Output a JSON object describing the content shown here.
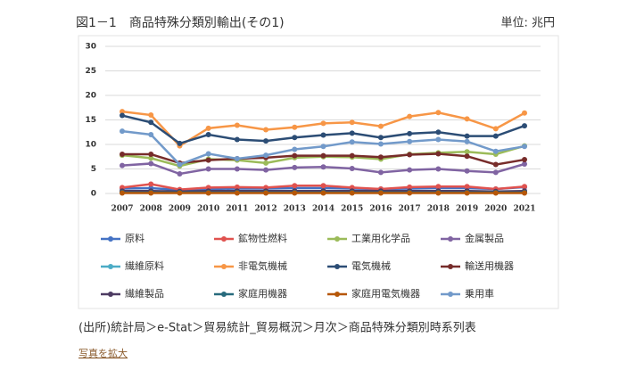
{
  "chart_data": {
    "type": "line",
    "title": "図1－1　商品特殊分類別輸出(その1)",
    "unit": "単位: 兆円",
    "x": [
      "2007",
      "2008",
      "2009",
      "2010",
      "2011",
      "2012",
      "2013",
      "2014",
      "2015",
      "2016",
      "2017",
      "2018",
      "2019",
      "2020",
      "2021"
    ],
    "ylim": [
      0,
      30
    ],
    "yticks": [
      0,
      5,
      10,
      15,
      20,
      25,
      30
    ],
    "grid": true,
    "series": [
      {
        "name": "原料",
        "color": "#4472c4",
        "values": [
          1.0,
          1.1,
          0.7,
          0.9,
          1.0,
          1.0,
          1.1,
          1.1,
          1.0,
          0.9,
          1.0,
          1.1,
          1.1,
          0.9,
          1.3
        ]
      },
      {
        "name": "鉱物性燃料",
        "color": "#e0524f",
        "values": [
          1.2,
          1.9,
          0.8,
          1.2,
          1.3,
          1.2,
          1.6,
          1.6,
          1.2,
          0.9,
          1.3,
          1.4,
          1.4,
          0.9,
          1.4
        ]
      },
      {
        "name": "工業用化学品",
        "color": "#9bbb59",
        "values": [
          7.8,
          7.2,
          5.6,
          7.0,
          6.8,
          6.2,
          7.3,
          7.5,
          7.4,
          7.0,
          8.0,
          8.3,
          8.5,
          8.0,
          9.7
        ]
      },
      {
        "name": "金属製品",
        "color": "#8064a2",
        "values": [
          5.7,
          6.1,
          4.0,
          5.0,
          5.0,
          4.8,
          5.3,
          5.4,
          5.1,
          4.3,
          4.8,
          5.0,
          4.6,
          4.3,
          6.0
        ]
      },
      {
        "name": "繊維原料",
        "color": "#4bacc6",
        "values": [
          0.3,
          0.3,
          0.2,
          0.3,
          0.3,
          0.3,
          0.3,
          0.3,
          0.3,
          0.3,
          0.3,
          0.3,
          0.3,
          0.2,
          0.3
        ]
      },
      {
        "name": "非電気機械",
        "color": "#f79646",
        "values": [
          16.7,
          16.0,
          9.7,
          13.3,
          13.9,
          13.0,
          13.5,
          14.3,
          14.5,
          13.7,
          15.7,
          16.5,
          15.2,
          13.2,
          16.4
        ]
      },
      {
        "name": "電気機械",
        "color": "#2c4d75",
        "values": [
          15.9,
          14.5,
          10.2,
          12.0,
          11.0,
          10.7,
          11.4,
          11.9,
          12.3,
          11.4,
          12.2,
          12.5,
          11.7,
          11.7,
          13.8
        ]
      },
      {
        "name": "輸送用機器",
        "color": "#772c2a",
        "values": [
          8.0,
          8.0,
          6.2,
          6.8,
          7.1,
          7.3,
          7.7,
          7.7,
          7.7,
          7.4,
          7.9,
          8.1,
          7.6,
          5.9,
          6.9
        ]
      },
      {
        "name": "繊維製品",
        "color": "#4d3b62",
        "values": [
          0.5,
          0.5,
          0.4,
          0.5,
          0.5,
          0.5,
          0.5,
          0.5,
          0.5,
          0.5,
          0.5,
          0.5,
          0.5,
          0.4,
          0.5
        ]
      },
      {
        "name": "家庭用機器",
        "color": "#276a7c",
        "values": [
          0.2,
          0.2,
          0.2,
          0.2,
          0.2,
          0.2,
          0.2,
          0.2,
          0.2,
          0.2,
          0.2,
          0.2,
          0.2,
          0.2,
          0.2
        ]
      },
      {
        "name": "家庭用電気機器",
        "color": "#b65708",
        "values": [
          0.1,
          0.1,
          0.1,
          0.1,
          0.1,
          0.1,
          0.1,
          0.1,
          0.1,
          0.1,
          0.1,
          0.1,
          0.1,
          0.1,
          0.1
        ]
      },
      {
        "name": "乗用車",
        "color": "#729aca",
        "values": [
          12.7,
          12.0,
          5.9,
          8.1,
          7.1,
          7.8,
          9.0,
          9.6,
          10.5,
          10.1,
          10.6,
          11.0,
          10.6,
          8.6,
          9.6
        ]
      }
    ]
  },
  "source": "(出所)統計局＞e-Stat＞貿易統計_貿易概況＞月次＞商品特殊分類別時系列表",
  "link": "写真を拡大"
}
